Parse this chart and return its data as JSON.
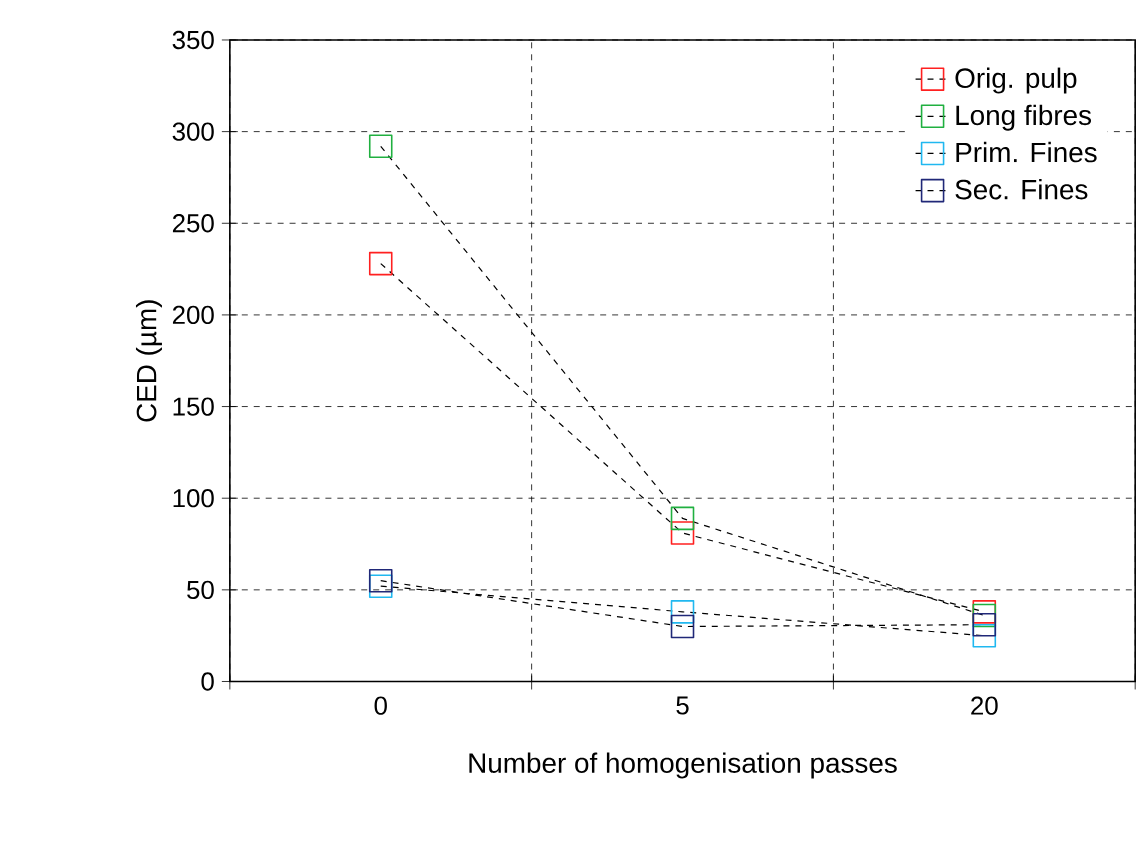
{
  "chart_data": {
    "type": "line",
    "xlabel": "Number of homogenisation passes",
    "ylabel": "CED (µm)",
    "categories": [
      "0",
      "5",
      "20"
    ],
    "series": [
      {
        "name": "Orig. pulp",
        "color": "#ff2020",
        "values": [
          228,
          81,
          38
        ]
      },
      {
        "name": "Long fibres",
        "color": "#20b040",
        "values": [
          292,
          89,
          36
        ]
      },
      {
        "name": "Prim. Fines",
        "color": "#20b8f0",
        "values": [
          52,
          38,
          25
        ]
      },
      {
        "name": "Sec. Fines",
        "color": "#202878",
        "values": [
          55,
          30,
          31
        ]
      }
    ],
    "ylim": [
      0,
      350
    ],
    "yticks": [
      0,
      50,
      100,
      150,
      200,
      250,
      300,
      350
    ],
    "grid": true,
    "legend": "top right",
    "marker": "square",
    "line_style": "dashed"
  }
}
